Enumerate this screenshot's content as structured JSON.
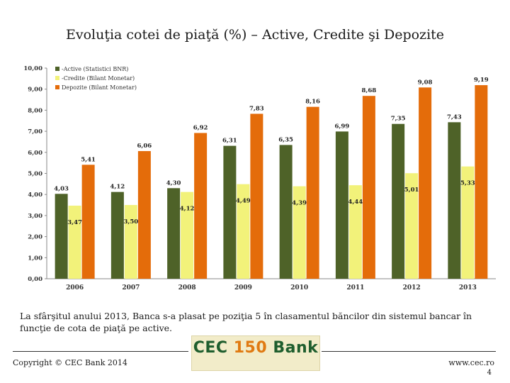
{
  "title": "Evoluţia cotei de piaţă (%) – Active, Credite şi Depozite",
  "chart_data": {
    "type": "bar",
    "categories": [
      "2006",
      "2007",
      "2008",
      "2009",
      "2010",
      "2011",
      "2012",
      "2013"
    ],
    "series": [
      {
        "name": "-Active (Statistici BNR)",
        "color": "#4e6228",
        "values": [
          4.03,
          4.12,
          4.3,
          6.31,
          6.35,
          6.99,
          7.35,
          7.43
        ],
        "labels": [
          "4,03",
          "4,12",
          "4,30",
          "6,31",
          "6,35",
          "6,99",
          "7,35",
          "7,43"
        ]
      },
      {
        "name": "-Credite (Bilant Monetar)",
        "color": "#f2f27a",
        "values": [
          3.47,
          3.5,
          4.12,
          4.49,
          4.39,
          4.44,
          5.01,
          5.33
        ],
        "labels": [
          "3,47",
          "3,50",
          "4,12",
          "4,49",
          "4,39",
          "4,44",
          "5,01",
          "5,33"
        ]
      },
      {
        "name": "Depozite (Bilant Monetar)",
        "color": "#e46c0a",
        "values": [
          5.41,
          6.06,
          6.92,
          7.83,
          8.16,
          8.68,
          9.08,
          9.19
        ],
        "labels": [
          "5,41",
          "6,06",
          "6,92",
          "7,83",
          "8,16",
          "8,68",
          "9,08",
          "9,19"
        ]
      }
    ],
    "ylim": [
      0,
      10
    ],
    "yticks": [
      "0,00",
      "1,00",
      "2,00",
      "3,00",
      "4,00",
      "5,00",
      "6,00",
      "7,00",
      "8,00",
      "9,00",
      "10,00"
    ],
    "grid": false,
    "legend_position": "top-left"
  },
  "caption": "La sfârşitul anului 2013, Banca s-a plasat pe poziţia 5 în clasamentul băncilor din sistemul bancar în funcţie de cota de piaţă pe active.",
  "footer": {
    "copyright": "Copyright © CEC Bank 2014",
    "logo_text": "CEC 150 Bank",
    "website": "www.cec.ro",
    "page_number": "4"
  },
  "colors": {
    "accent_green": "#1f5e2e",
    "accent_orange": "#e07a12"
  }
}
